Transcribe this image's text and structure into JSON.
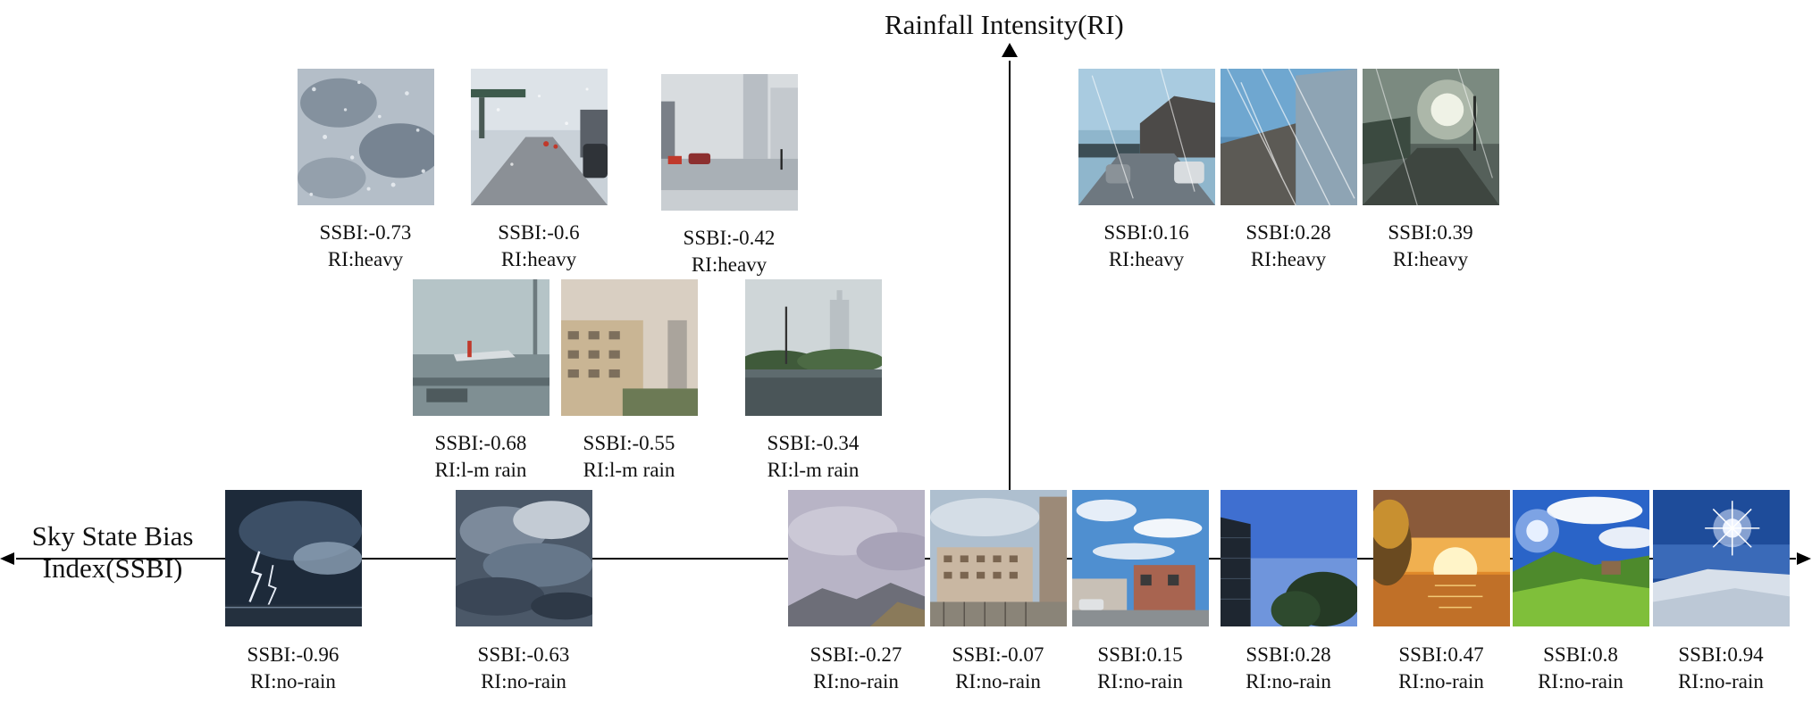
{
  "axes": {
    "y_title": "Rainfall Intensity(RI)",
    "x_title": "Sky State Bias Index(SSBI)"
  },
  "images": [
    {
      "id": "heavy-1",
      "ssbi": "SSBI:-0.73",
      "ri": "RI:heavy",
      "scene": "rain-texture-icon"
    },
    {
      "id": "heavy-2",
      "ssbi": "SSBI:-0.6",
      "ri": "RI:heavy",
      "scene": "rainy-street-icon"
    },
    {
      "id": "heavy-3",
      "ssbi": "SSBI:-0.42",
      "ri": "RI:heavy",
      "scene": "flooded-city-icon"
    },
    {
      "id": "lm-1",
      "ssbi": "SSBI:-0.68",
      "ri": "RI:l-m rain",
      "scene": "foggy-airport-icon"
    },
    {
      "id": "lm-2",
      "ssbi": "SSBI:-0.55",
      "ri": "RI:l-m rain",
      "scene": "hazy-buildings-icon"
    },
    {
      "id": "lm-3",
      "ssbi": "SSBI:-0.34",
      "ri": "RI:l-m rain",
      "scene": "wet-park-icon"
    },
    {
      "id": "heavy-4",
      "ssbi": "SSBI:0.16",
      "ri": "RI:heavy",
      "scene": "sunny-rain-street-icon"
    },
    {
      "id": "heavy-5",
      "ssbi": "SSBI:0.28",
      "ri": "RI:heavy",
      "scene": "sunny-rain-building-icon"
    },
    {
      "id": "heavy-6",
      "ssbi": "SSBI:0.39",
      "ri": "RI:heavy",
      "scene": "sunny-rain-road-icon"
    },
    {
      "id": "no-1",
      "ssbi": "SSBI:-0.96",
      "ri": "RI:no-rain",
      "scene": "lightning-storm-icon"
    },
    {
      "id": "no-2",
      "ssbi": "SSBI:-0.63",
      "ri": "RI:no-rain",
      "scene": "dark-clouds-icon"
    },
    {
      "id": "no-3",
      "ssbi": "SSBI:-0.27",
      "ri": "RI:no-rain",
      "scene": "overcast-hills-icon"
    },
    {
      "id": "no-4",
      "ssbi": "SSBI:-0.07",
      "ri": "RI:no-rain",
      "scene": "cloudy-apartments-icon"
    },
    {
      "id": "no-5",
      "ssbi": "SSBI:0.15",
      "ri": "RI:no-rain",
      "scene": "partly-cloudy-houses-icon"
    },
    {
      "id": "no-6",
      "ssbi": "SSBI:0.28",
      "ri": "RI:no-rain",
      "scene": "clear-sky-tower-icon"
    },
    {
      "id": "no-7",
      "ssbi": "SSBI:0.47",
      "ri": "RI:no-rain",
      "scene": "sunset-sea-icon"
    },
    {
      "id": "no-8",
      "ssbi": "SSBI:0.8",
      "ri": "RI:no-rain",
      "scene": "sunny-meadow-icon"
    },
    {
      "id": "no-9",
      "ssbi": "SSBI:0.94",
      "ri": "RI:no-rain",
      "scene": "bright-sun-snow-icon"
    }
  ]
}
